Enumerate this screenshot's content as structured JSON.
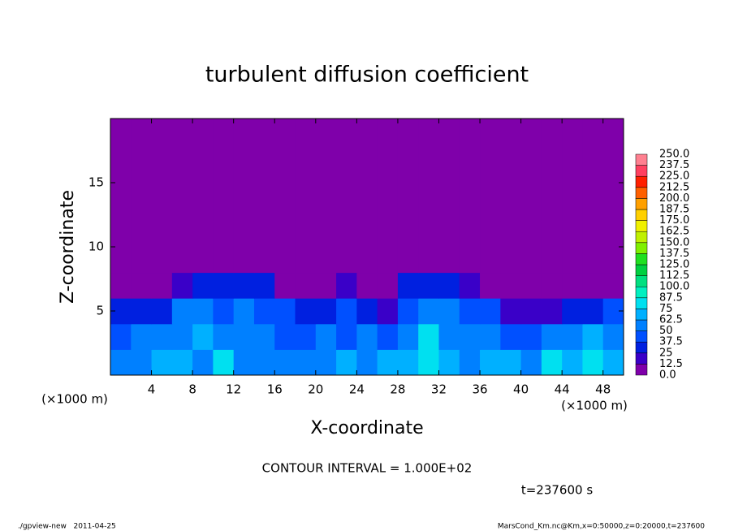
{
  "chart_data": {
    "type": "heatmap",
    "title": "turbulent diffusion coefficient",
    "xlabel": "X-coordinate",
    "ylabel": "Z-coordinate",
    "x_unit": "(×1000 m)",
    "y_unit": "(×1000 m)",
    "xlim": [
      0,
      50
    ],
    "ylim": [
      0,
      20
    ],
    "xticks": [
      4,
      8,
      12,
      16,
      20,
      24,
      28,
      32,
      36,
      40,
      44,
      48
    ],
    "yticks": [
      5,
      10,
      15
    ],
    "xbins": [
      0,
      2,
      4,
      6,
      8,
      10,
      12,
      14,
      16,
      18,
      20,
      22,
      24,
      26,
      28,
      30,
      32,
      34,
      36,
      38,
      40,
      42,
      44,
      46,
      48,
      50
    ],
    "ybins": [
      0,
      2,
      4,
      6,
      8,
      10,
      12,
      14,
      16,
      18,
      20
    ],
    "values": [
      [
        60,
        55,
        70,
        65,
        60,
        75,
        60,
        55,
        50,
        55,
        60,
        65,
        60,
        70,
        65,
        80,
        70,
        60,
        65,
        70,
        60,
        75,
        70,
        80,
        70
      ],
      [
        40,
        50,
        60,
        55,
        65,
        60,
        55,
        50,
        45,
        40,
        50,
        45,
        55,
        45,
        60,
        85,
        55,
        50,
        60,
        45,
        45,
        55,
        60,
        65,
        60
      ],
      [
        25,
        35,
        30,
        50,
        55,
        45,
        50,
        45,
        40,
        30,
        30,
        40,
        35,
        20,
        45,
        50,
        50,
        45,
        40,
        20,
        15,
        15,
        30,
        35,
        40
      ],
      [
        0,
        0,
        5,
        20,
        30,
        35,
        35,
        25,
        10,
        5,
        5,
        15,
        5,
        10,
        25,
        35,
        25,
        20,
        5,
        0,
        0,
        0,
        5,
        5,
        0
      ],
      [
        0,
        0,
        0,
        0,
        0,
        0,
        0,
        0,
        0,
        0,
        0,
        0,
        0,
        0,
        0,
        5,
        0,
        0,
        0,
        0,
        0,
        0,
        0,
        0,
        0
      ],
      [
        0,
        0,
        0,
        0,
        0,
        0,
        0,
        0,
        0,
        0,
        0,
        0,
        0,
        0,
        0,
        0,
        0,
        0,
        0,
        0,
        0,
        0,
        0,
        0,
        0
      ],
      [
        0,
        0,
        0,
        0,
        0,
        0,
        0,
        0,
        0,
        0,
        0,
        0,
        0,
        0,
        0,
        0,
        0,
        0,
        0,
        0,
        0,
        0,
        0,
        0,
        0
      ],
      [
        0,
        0,
        0,
        0,
        0,
        0,
        0,
        0,
        0,
        0,
        0,
        0,
        0,
        0,
        0,
        0,
        0,
        0,
        0,
        0,
        0,
        0,
        0,
        0,
        0
      ],
      [
        0,
        0,
        0,
        0,
        0,
        0,
        0,
        0,
        0,
        0,
        0,
        0,
        0,
        0,
        0,
        0,
        0,
        0,
        0,
        0,
        0,
        0,
        0,
        0,
        0
      ],
      [
        0,
        0,
        0,
        0,
        0,
        0,
        0,
        0,
        0,
        0,
        0,
        0,
        0,
        0,
        0,
        0,
        0,
        0,
        0,
        0,
        0,
        0,
        0,
        0,
        0
      ]
    ],
    "colorbar": {
      "levels": [
        {
          "value": 0,
          "label": "0.0"
        },
        12.5,
        25,
        37.5,
        50,
        62.5,
        75,
        87.5,
        {
          "value": 100,
          "label": "100.0"
        },
        112.5,
        {
          "value": 125,
          "label": "125.0"
        },
        137.5,
        {
          "value": 150,
          "label": "150.0"
        },
        162.5,
        {
          "value": 175,
          "label": "175.0"
        },
        187.5,
        {
          "value": 200,
          "label": "200.0"
        },
        212.5,
        {
          "value": 225,
          "label": "225.0"
        },
        237.5,
        {
          "value": 250,
          "label": "250.0"
        }
      ],
      "colors": [
        "#7f00aa",
        "#3a00c8",
        "#0020e0",
        "#0050ff",
        "#0080ff",
        "#00b0ff",
        "#00e0f0",
        "#00f0c0",
        "#00e080",
        "#00d040",
        "#20e020",
        "#80f000",
        "#c0f000",
        "#f0f000",
        "#ffd000",
        "#ffa000",
        "#ff6000",
        "#ff2000",
        "#ff4060",
        "#ff8090"
      ]
    },
    "annotations": [
      "CONTOUR INTERVAL = 1.000E+02",
      "t=237600 s"
    ],
    "footer_left": "./gpview-new   2011-04-25",
    "footer_right": "MarsCond_Km.nc@Km,x=0:50000,z=0:20000,t=237600"
  }
}
